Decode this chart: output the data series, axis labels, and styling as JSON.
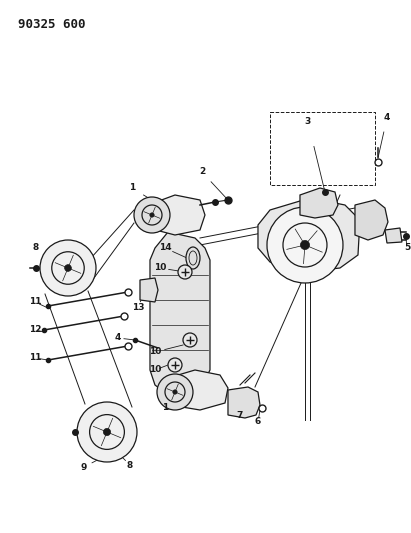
{
  "title": "90325 600",
  "bg": "#ffffff",
  "lc": "#1a1a1a",
  "fig_width": 4.11,
  "fig_height": 5.33,
  "dpi": 100,
  "title_fontsize": 9,
  "label_fontsize": 6.5
}
